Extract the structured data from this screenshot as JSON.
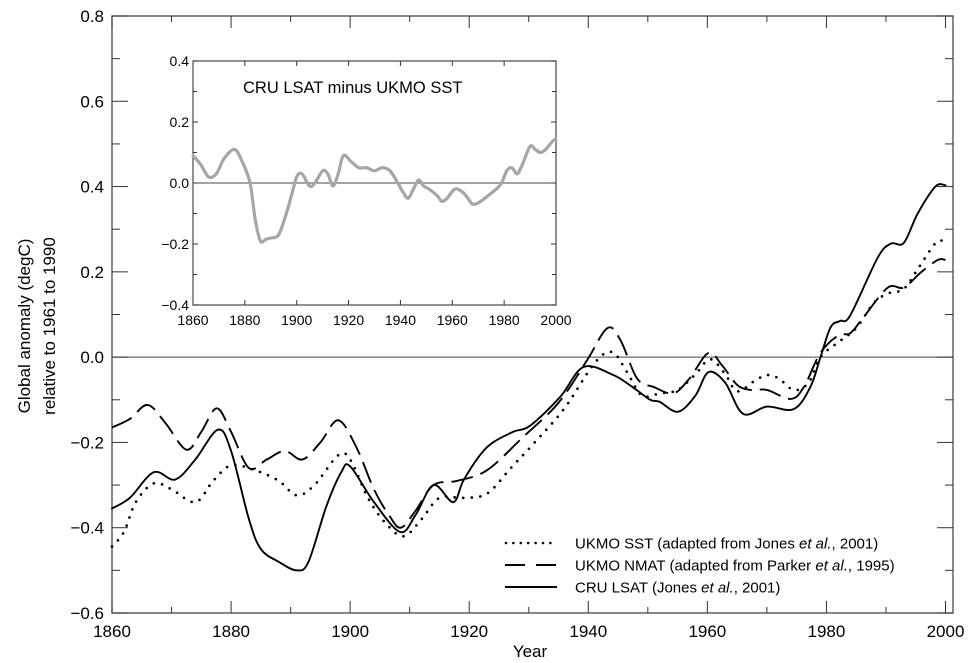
{
  "chart_data": [
    {
      "type": "line",
      "title": "",
      "xlabel": "Year",
      "ylabel": [
        "Global anomaly (degC)",
        "relative to 1961 to 1990"
      ],
      "xlim": [
        1860,
        2000
      ],
      "ylim": [
        -0.6,
        0.8
      ],
      "xticks": [
        1860,
        1880,
        1900,
        1920,
        1940,
        1960,
        1980,
        2000
      ],
      "xtick_labels": [
        "1860",
        "1880",
        "1900",
        "1920",
        "1940",
        "1960",
        "1980",
        "2000"
      ],
      "yticks": [
        -0.6,
        -0.4,
        -0.2,
        0.0,
        0.2,
        0.4,
        0.6,
        0.8
      ],
      "ytick_labels": [
        "−0.6",
        "−0.4",
        "−0.2",
        "0.0",
        "0.2",
        "0.4",
        "0.6",
        "0.8"
      ],
      "zero_line": true,
      "grid": false,
      "legend_position": "bottom-right",
      "series": [
        {
          "name": "UKMO SST",
          "legend_label": "UKMO SST (adapted from Jones et al., 2001)",
          "legend_prefix": "UKMO SST (adapted from Jones ",
          "legend_italic": "et al.",
          "legend_suffix": ", 2001)",
          "style": "dotted",
          "color": "#000000",
          "x": [
            1860,
            1862,
            1864,
            1867,
            1870,
            1874,
            1877,
            1880,
            1884,
            1888,
            1891,
            1894,
            1898,
            1900,
            1903,
            1906,
            1909,
            1912,
            1915,
            1919,
            1923,
            1927,
            1931,
            1936,
            1941,
            1944,
            1946.5,
            1949,
            1952,
            1955,
            1958,
            1960.5,
            1963,
            1965,
            1968,
            1970,
            1972,
            1974.5,
            1977,
            1979,
            1982,
            1985,
            1988,
            1990.5,
            1993,
            1995.5,
            1998.5,
            2000
          ],
          "y": [
            -0.444,
            -0.41,
            -0.34,
            -0.296,
            -0.31,
            -0.34,
            -0.29,
            -0.254,
            -0.265,
            -0.29,
            -0.324,
            -0.3,
            -0.23,
            -0.24,
            -0.33,
            -0.39,
            -0.42,
            -0.38,
            -0.33,
            -0.33,
            -0.32,
            -0.26,
            -0.2,
            -0.12,
            -0.015,
            0.012,
            -0.035,
            -0.09,
            -0.085,
            -0.077,
            -0.04,
            -0.005,
            -0.04,
            -0.08,
            -0.055,
            -0.042,
            -0.05,
            -0.077,
            -0.06,
            0.0,
            0.035,
            0.068,
            0.128,
            0.15,
            0.16,
            0.21,
            0.27,
            0.268
          ]
        },
        {
          "name": "UKMO NMAT",
          "legend_label": "UKMO NMAT (adapted from Parker et al., 1995)",
          "legend_prefix": "UKMO NMAT (adapted from Parker ",
          "legend_italic": "et al.",
          "legend_suffix": ", 1995)",
          "style": "dashed",
          "color": "#000000",
          "x": [
            1860,
            1863,
            1866,
            1869,
            1872.5,
            1875,
            1877.6,
            1880,
            1883,
            1886,
            1889,
            1892,
            1895,
            1898,
            1901,
            1904,
            1906.5,
            1908.5,
            1911,
            1914,
            1918,
            1923,
            1929,
            1935,
            1939.8,
            1943.2,
            1945.4,
            1948.2,
            1951,
            1954.3,
            1957,
            1960.2,
            1962.5,
            1965,
            1967.2,
            1970,
            1974,
            1976.2,
            1979,
            1982,
            1984,
            1986.2,
            1990.3,
            1993,
            1995.8,
            1998.7,
            2000
          ],
          "y": [
            -0.165,
            -0.145,
            -0.112,
            -0.155,
            -0.217,
            -0.175,
            -0.12,
            -0.175,
            -0.26,
            -0.24,
            -0.22,
            -0.24,
            -0.2,
            -0.148,
            -0.21,
            -0.31,
            -0.37,
            -0.4,
            -0.36,
            -0.3,
            -0.29,
            -0.265,
            -0.188,
            -0.107,
            -0.007,
            0.068,
            0.04,
            -0.05,
            -0.07,
            -0.085,
            -0.05,
            0.01,
            -0.02,
            -0.065,
            -0.077,
            -0.077,
            -0.098,
            -0.07,
            0.01,
            0.051,
            0.056,
            0.093,
            0.163,
            0.163,
            0.198,
            0.228,
            0.228
          ]
        },
        {
          "name": "CRU LSAT",
          "legend_label": "CRU LSAT (Jones et al., 2001)",
          "legend_prefix": "CRU LSAT (Jones ",
          "legend_italic": "et al.",
          "legend_suffix": ", 2001)",
          "style": "solid",
          "color": "#000000",
          "x": [
            1860,
            1863,
            1867,
            1870.6,
            1874,
            1877.8,
            1880,
            1883,
            1885,
            1888,
            1891,
            1893,
            1896,
            1898.5,
            1900,
            1904,
            1908.4,
            1911,
            1914,
            1917.3,
            1919,
            1921.8,
            1924,
            1927.4,
            1930.3,
            1935.3,
            1939.2,
            1944.2,
            1947.6,
            1950.4,
            1952,
            1955.1,
            1958,
            1960.2,
            1963,
            1966,
            1970,
            1974.5,
            1977.3,
            1979,
            1980.7,
            1982.3,
            1984,
            1988.6,
            1990.8,
            1993,
            1995.3,
            1998.3,
            2000
          ],
          "y": [
            -0.355,
            -0.33,
            -0.27,
            -0.287,
            -0.24,
            -0.17,
            -0.22,
            -0.38,
            -0.45,
            -0.48,
            -0.5,
            -0.48,
            -0.35,
            -0.27,
            -0.256,
            -0.34,
            -0.41,
            -0.37,
            -0.3,
            -0.34,
            -0.29,
            -0.23,
            -0.2,
            -0.175,
            -0.16,
            -0.093,
            -0.023,
            -0.042,
            -0.072,
            -0.1,
            -0.105,
            -0.128,
            -0.09,
            -0.035,
            -0.06,
            -0.133,
            -0.116,
            -0.122,
            -0.07,
            0.0,
            0.07,
            0.085,
            0.098,
            0.233,
            0.266,
            0.268,
            0.336,
            0.4,
            0.403
          ]
        }
      ]
    },
    {
      "type": "line",
      "title": "CRU LSAT minus UKMO SST",
      "xlabel": "",
      "ylabel": "",
      "placement": "inset-top-left",
      "xlim": [
        1860,
        2000
      ],
      "ylim": [
        -0.4,
        0.4
      ],
      "xticks": [
        1860,
        1880,
        1900,
        1920,
        1940,
        1960,
        1980,
        2000
      ],
      "xtick_labels": [
        "1860",
        "1880",
        "1900",
        "1920",
        "1940",
        "1960",
        "1980",
        "2000"
      ],
      "yticks": [
        -0.4,
        -0.2,
        0.0,
        0.2,
        0.4
      ],
      "ytick_labels": [
        "−0.4",
        "−0.2",
        "0.0",
        "0.2",
        "0.4"
      ],
      "zero_line": true,
      "grid": false,
      "series": [
        {
          "name": "CRU LSAT minus UKMO SST",
          "style": "solid",
          "color": "#a6a6a6",
          "x": [
            1860,
            1863,
            1866,
            1869,
            1872,
            1876,
            1879,
            1882,
            1884,
            1886,
            1888,
            1890,
            1893,
            1896,
            1898,
            1900,
            1902,
            1905,
            1907,
            1910,
            1912,
            1914,
            1916,
            1918,
            1921,
            1924,
            1927,
            1930,
            1933,
            1936,
            1939,
            1941,
            1943,
            1945,
            1947,
            1949,
            1951,
            1954,
            1956,
            1958,
            1961,
            1964,
            1966,
            1968,
            1971,
            1974,
            1977,
            1979,
            1981,
            1983,
            1985,
            1987,
            1990,
            1992,
            1994,
            1996,
            1999,
            2000
          ],
          "y": [
            0.09,
            0.06,
            0.02,
            0.03,
            0.08,
            0.11,
            0.07,
            0.0,
            -0.12,
            -0.19,
            -0.185,
            -0.18,
            -0.17,
            -0.1,
            -0.04,
            0.02,
            0.03,
            -0.01,
            0.0,
            0.04,
            0.03,
            -0.01,
            0.03,
            0.09,
            0.07,
            0.05,
            0.05,
            0.04,
            0.05,
            0.04,
            0.0,
            -0.03,
            -0.05,
            -0.02,
            0.01,
            -0.01,
            -0.02,
            -0.04,
            -0.06,
            -0.05,
            -0.02,
            -0.03,
            -0.05,
            -0.07,
            -0.06,
            -0.04,
            -0.02,
            0.0,
            0.04,
            0.05,
            0.03,
            0.06,
            0.12,
            0.11,
            0.1,
            0.11,
            0.14,
            0.14
          ]
        }
      ]
    }
  ]
}
